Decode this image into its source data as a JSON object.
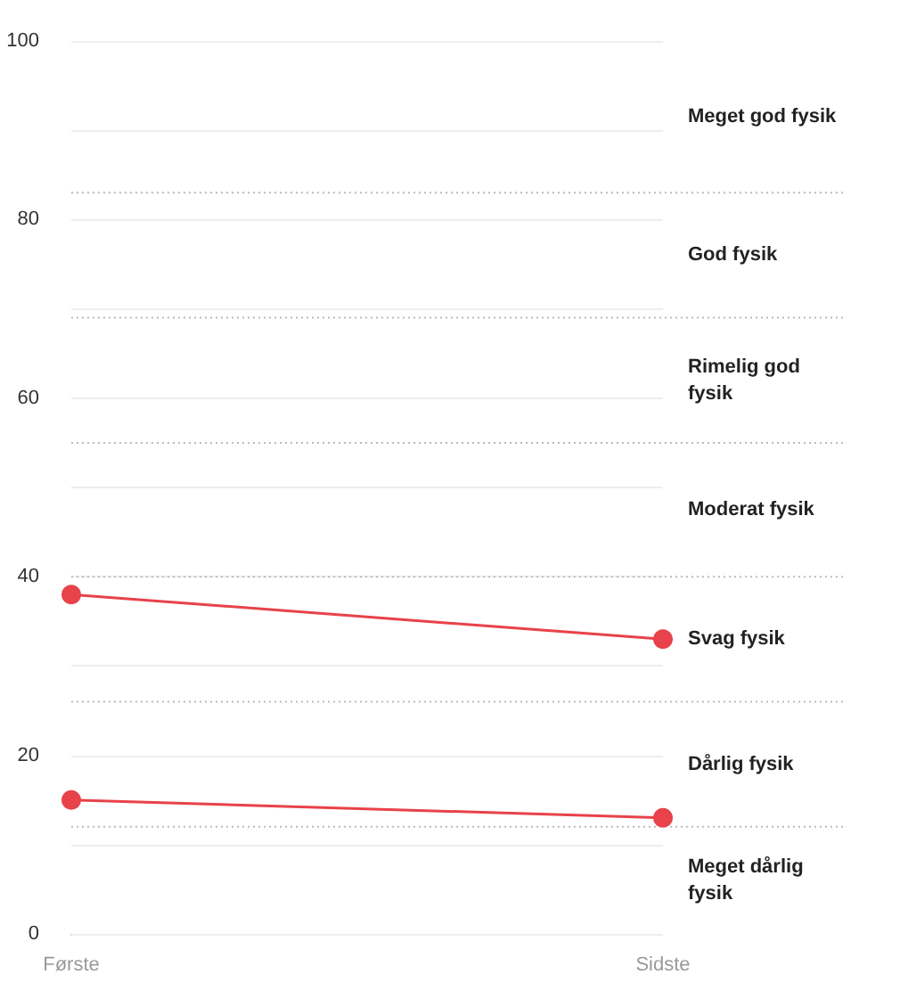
{
  "chart_data": {
    "type": "line",
    "categories": [
      "Første",
      "Sidste"
    ],
    "series": [
      {
        "color": "#e8424a",
        "values": [
          38,
          33
        ]
      },
      {
        "color": "#e8424a",
        "values": [
          15,
          13
        ]
      }
    ],
    "ylim": [
      0,
      100
    ],
    "yticks": [
      0,
      {
        "value": 10,
        "label": null
      },
      20,
      {
        "value": 30,
        "label": null
      },
      40,
      {
        "value": 50,
        "label": null
      },
      60,
      {
        "value": 70,
        "label": null
      },
      80,
      {
        "value": 90,
        "label": null
      },
      100
    ],
    "grid": "y",
    "marker": "circle",
    "line_style": "solid",
    "ref_lines": [
      {
        "axis": "y",
        "value": 83,
        "line_style": "dotted"
      },
      {
        "axis": "y",
        "value": 69,
        "line_style": "dotted"
      },
      {
        "axis": "y",
        "value": 55,
        "line_style": "dotted"
      },
      {
        "axis": "y",
        "value": 40,
        "line_style": "dotted"
      },
      {
        "axis": "y",
        "value": 26,
        "line_style": "dotted"
      },
      {
        "axis": "y",
        "value": 12,
        "line_style": "dotted"
      }
    ],
    "annotations": [
      "Meget god fysik",
      "God fysik",
      "Rimelig god fysik",
      "Moderat fysik",
      "Svag fysik",
      "Dårlig fysik",
      "Meget dårlig fysik"
    ]
  }
}
